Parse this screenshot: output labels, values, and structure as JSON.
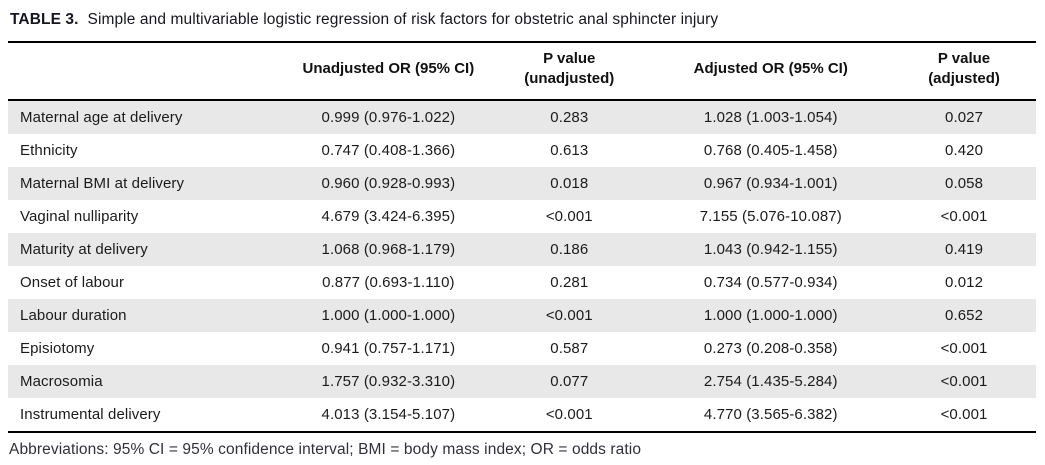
{
  "title": {
    "label": "TABLE 3.",
    "text": "Simple and multivariable logistic regression of risk factors for obstetric anal sphincter injury"
  },
  "table": {
    "columns": [
      {
        "label": ""
      },
      {
        "label": "Unadjusted OR (95% CI)"
      },
      {
        "label": "P value\n(unadjusted)"
      },
      {
        "label": "Adjusted OR (95% CI)"
      },
      {
        "label": "P value\n(adjusted)"
      }
    ],
    "rows": [
      {
        "risk_factor": "Maternal age at delivery",
        "unadjusted_or": "0.999 (0.976-1.022)",
        "p_unadjusted": "0.283",
        "adjusted_or": "1.028 (1.003-1.054)",
        "p_adjusted": "0.027"
      },
      {
        "risk_factor": "Ethnicity",
        "unadjusted_or": "0.747 (0.408-1.366)",
        "p_unadjusted": "0.613",
        "adjusted_or": "0.768 (0.405-1.458)",
        "p_adjusted": "0.420"
      },
      {
        "risk_factor": "Maternal BMI at delivery",
        "unadjusted_or": "0.960 (0.928-0.993)",
        "p_unadjusted": "0.018",
        "adjusted_or": "0.967 (0.934-1.001)",
        "p_adjusted": "0.058"
      },
      {
        "risk_factor": "Vaginal nulliparity",
        "unadjusted_or": "4.679 (3.424-6.395)",
        "p_unadjusted": "<0.001",
        "adjusted_or": "7.155 (5.076-10.087)",
        "p_adjusted": "<0.001"
      },
      {
        "risk_factor": "Maturity at delivery",
        "unadjusted_or": "1.068 (0.968-1.179)",
        "p_unadjusted": "0.186",
        "adjusted_or": "1.043 (0.942-1.155)",
        "p_adjusted": "0.419"
      },
      {
        "risk_factor": "Onset of labour",
        "unadjusted_or": "0.877 (0.693-1.110)",
        "p_unadjusted": "0.281",
        "adjusted_or": "0.734 (0.577-0.934)",
        "p_adjusted": "0.012"
      },
      {
        "risk_factor": "Labour duration",
        "unadjusted_or": "1.000 (1.000-1.000)",
        "p_unadjusted": "<0.001",
        "adjusted_or": "1.000 (1.000-1.000)",
        "p_adjusted": "0.652"
      },
      {
        "risk_factor": "Episiotomy",
        "unadjusted_or": "0.941 (0.757-1.171)",
        "p_unadjusted": "0.587",
        "adjusted_or": "0.273 (0.208-0.358)",
        "p_adjusted": "<0.001"
      },
      {
        "risk_factor": "Macrosomia",
        "unadjusted_or": "1.757 (0.932-3.310)",
        "p_unadjusted": "0.077",
        "adjusted_or": "2.754 (1.435-5.284)",
        "p_adjusted": "<0.001"
      },
      {
        "risk_factor": "Instrumental delivery",
        "unadjusted_or": "4.013 (3.154-5.107)",
        "p_unadjusted": "<0.001",
        "adjusted_or": "4.770 (3.565-6.382)",
        "p_adjusted": "<0.001"
      }
    ]
  },
  "footnote": "Abbreviations: 95% CI = 95% confidence interval; BMI = body mass index; OR = odds ratio",
  "colors": {
    "stripe": "#e8e8e8",
    "border": "#000000",
    "text": "#1b1b1b"
  }
}
